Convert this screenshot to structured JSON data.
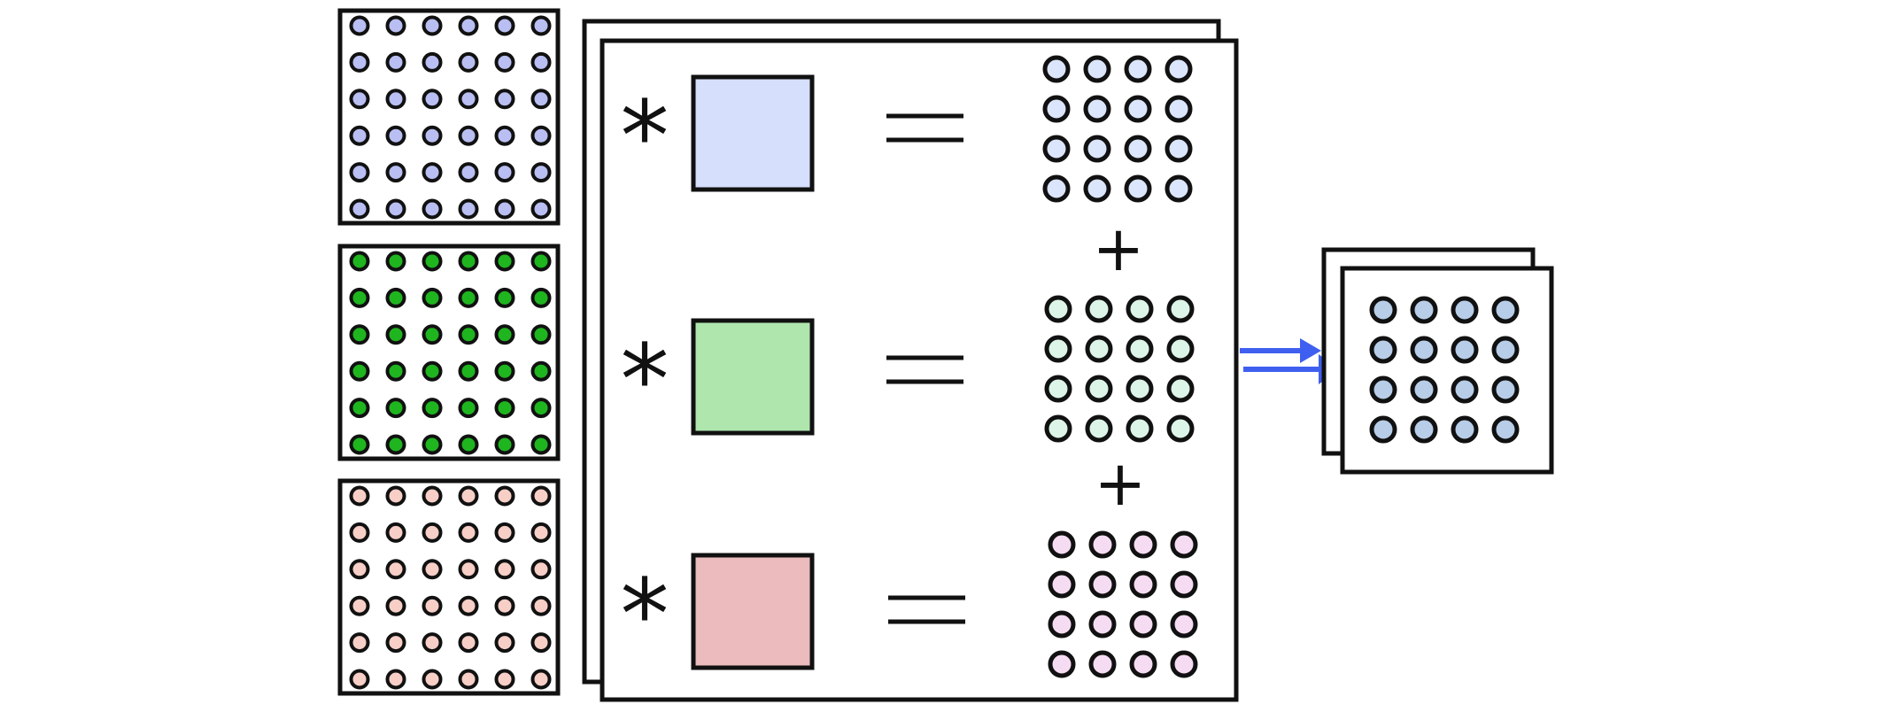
{
  "symbols": {
    "convolve": "*",
    "equals": "=",
    "plus": "+"
  },
  "colors": {
    "stroke": "#111111",
    "arrow": "#3f5ff0",
    "input_blue_dot": "#b9bff2",
    "input_green_dot": "#1fb51f",
    "input_pink_dot": "#f7cfc7",
    "kernel_blue": "#d6dffc",
    "kernel_green": "#afe6ae",
    "kernel_red": "#ebbbbd",
    "result_blue_dot": "#dbe5fb",
    "result_green_dot": "#dcf5e8",
    "result_pink_dot": "#f6dcf2",
    "output_dot": "#b7cde8"
  }
}
